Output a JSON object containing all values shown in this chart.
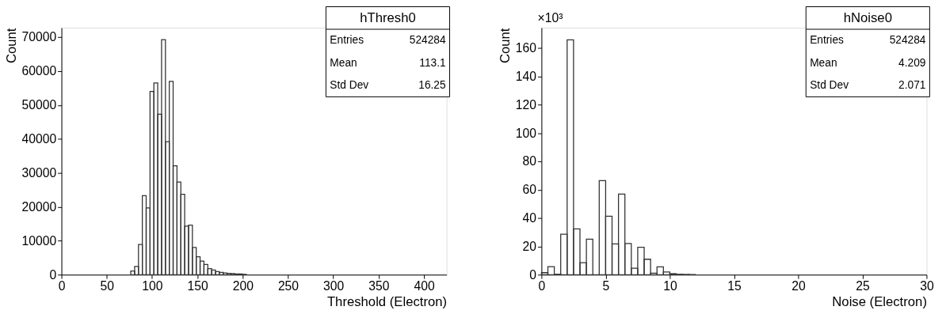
{
  "chart_data": [
    {
      "type": "histogram",
      "title": "hThresh0",
      "xlabel": "Threshold (Electron)",
      "ylabel": "Count",
      "bins": [
        76.5,
        80.75,
        85,
        89.25,
        93.5,
        97.75,
        102,
        106.25,
        110.5,
        114.75,
        119,
        123.25,
        127.5,
        131.75,
        136,
        140.25,
        144.5,
        148.75,
        153,
        157.25,
        161.5,
        165.75,
        170,
        174.25,
        178.5,
        182.75,
        187,
        191.25,
        195.5,
        199.75,
        204
      ],
      "values": [
        1100,
        2400,
        8900,
        23300,
        19700,
        54000,
        56500,
        47300,
        69300,
        39200,
        57000,
        32100,
        27300,
        23700,
        14300,
        14600,
        8000,
        5300,
        4000,
        3000,
        1800,
        1400,
        900,
        700,
        500,
        400,
        300,
        200,
        200,
        100
      ],
      "color": "#333333",
      "xlim": [
        0,
        425
      ],
      "xticks": [
        0,
        50,
        100,
        150,
        200,
        250,
        300,
        350,
        400
      ],
      "ylim": [
        0,
        72800
      ],
      "yticks": [
        0,
        10000,
        20000,
        30000,
        40000,
        50000,
        60000,
        70000
      ],
      "grid": false,
      "annotations": [
        "Entries 524284",
        "Mean 113.1",
        "Std Dev 16.25"
      ]
    },
    {
      "type": "histogram",
      "title": "hNoise0",
      "xlabel": "Noise (Electron)",
      "ylabel": "Count",
      "bins": [
        0,
        0.5,
        1,
        1.5,
        2,
        2.5,
        3,
        3.5,
        4,
        4.5,
        5,
        5.5,
        6,
        6.5,
        7,
        7.5,
        8,
        8.5,
        9,
        9.5,
        10,
        10.5,
        11,
        11.5,
        12
      ],
      "values": [
        1.4,
        5.6,
        0.3,
        28.5,
        165.7,
        32.3,
        8.5,
        25.1,
        0,
        66.4,
        41.3,
        21.7,
        56.9,
        22,
        4.6,
        19.3,
        10.9,
        1,
        5.5,
        1.9,
        0.7,
        0.3,
        0.2,
        0.1
      ],
      "color": "#333333",
      "xlim": [
        0,
        30
      ],
      "xticks": [
        0,
        5,
        10,
        15,
        20,
        25,
        30
      ],
      "ylim": [
        0,
        174.3
      ],
      "yticks": [
        0,
        20,
        40,
        60,
        80,
        100,
        120,
        140,
        160
      ],
      "grid": false,
      "annotations": [
        "×10³",
        "Entries 524284",
        "Mean 4.209",
        "Std Dev 2.071"
      ]
    }
  ]
}
